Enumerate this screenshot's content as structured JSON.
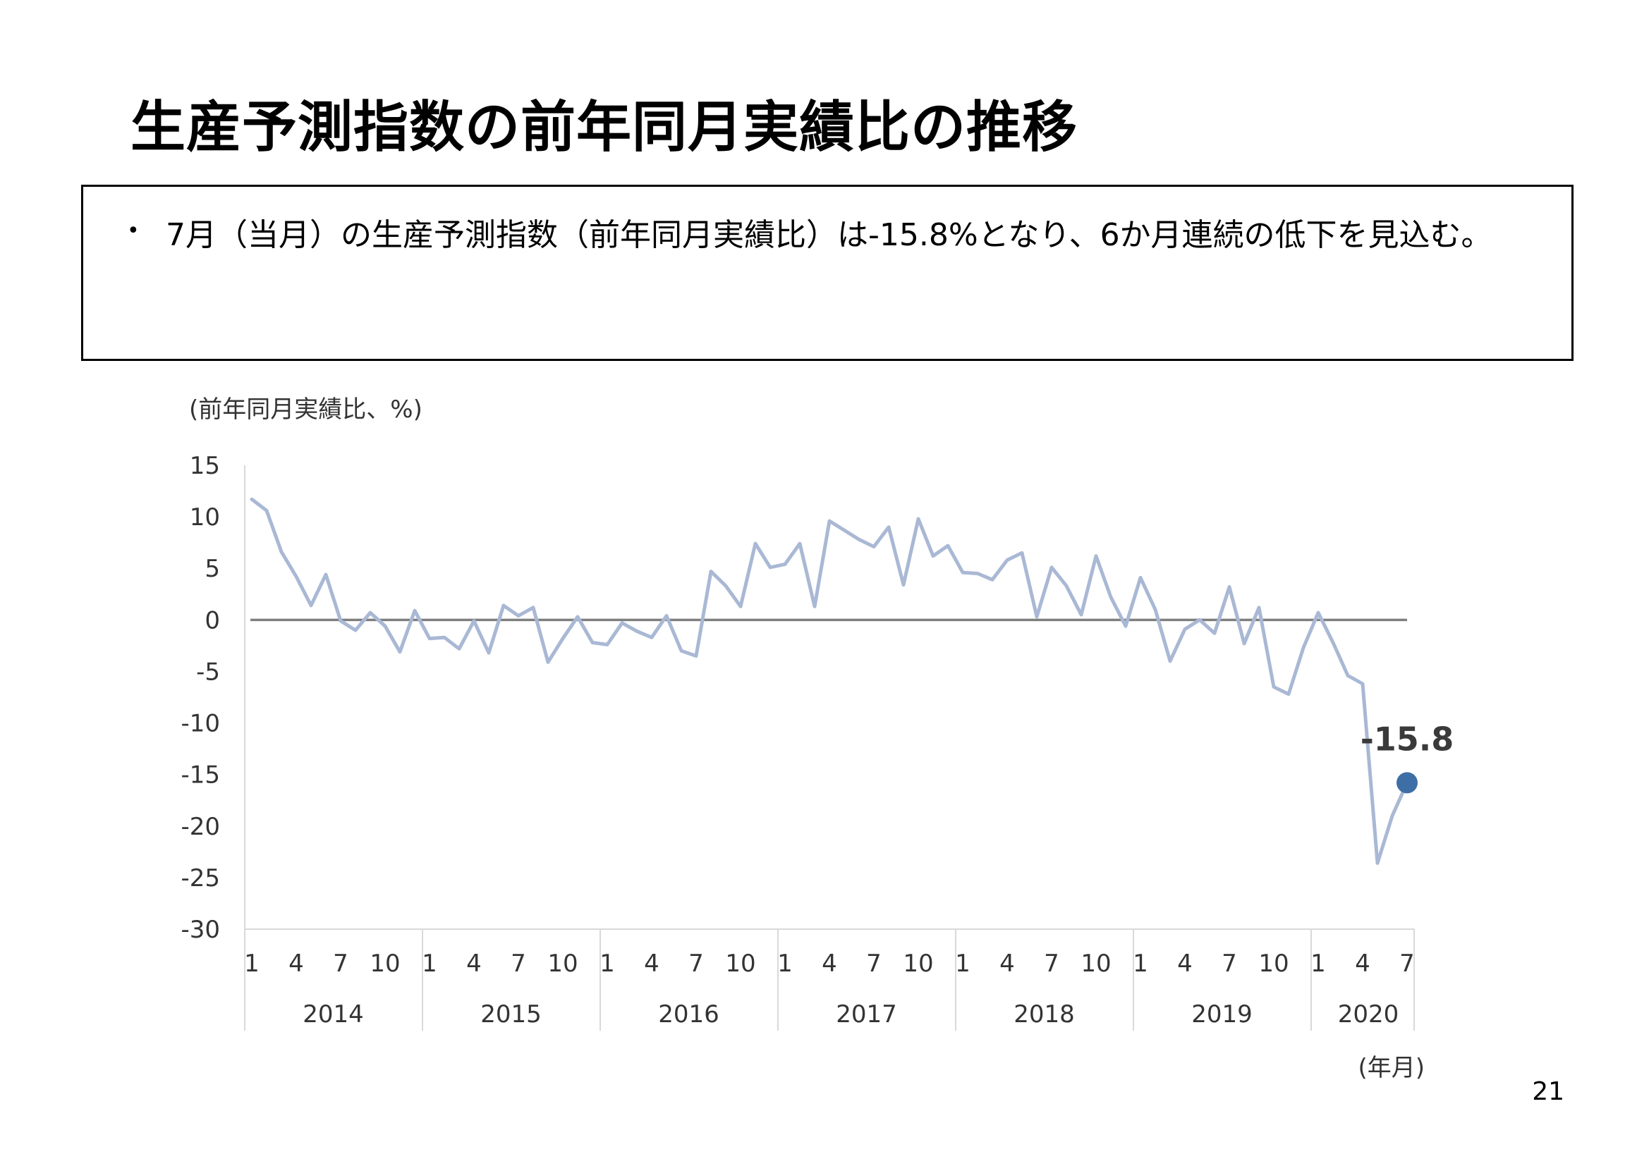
{
  "title": "生産予測指数の前年同月実績比の推移",
  "summary": {
    "bullet": "•",
    "text": "7月（当月）の生産予測指数（前年同月実績比）は-15.8%となり、6か月連続の低下を見込む。"
  },
  "page_number": "21",
  "chart_data": {
    "type": "line",
    "ylabel": "(前年同月実績比、%)",
    "xlabel": "(年月)",
    "ylim": [
      -30,
      15
    ],
    "yticks": [
      "15",
      "10",
      "5",
      "0",
      "-5",
      "-10",
      "-15",
      "-20",
      "-25",
      "-30"
    ],
    "years": [
      "2014",
      "2015",
      "2016",
      "2017",
      "2018",
      "2019",
      "2020"
    ],
    "month_ticks": [
      "1",
      "4",
      "7",
      "10"
    ],
    "months": [
      "2014-01",
      "2014-02",
      "2014-03",
      "2014-04",
      "2014-05",
      "2014-06",
      "2014-07",
      "2014-08",
      "2014-09",
      "2014-10",
      "2014-11",
      "2014-12",
      "2015-01",
      "2015-02",
      "2015-03",
      "2015-04",
      "2015-05",
      "2015-06",
      "2015-07",
      "2015-08",
      "2015-09",
      "2015-10",
      "2015-11",
      "2015-12",
      "2016-01",
      "2016-02",
      "2016-03",
      "2016-04",
      "2016-05",
      "2016-06",
      "2016-07",
      "2016-08",
      "2016-09",
      "2016-10",
      "2016-11",
      "2016-12",
      "2017-01",
      "2017-02",
      "2017-03",
      "2017-04",
      "2017-05",
      "2017-06",
      "2017-07",
      "2017-08",
      "2017-09",
      "2017-10",
      "2017-11",
      "2017-12",
      "2018-01",
      "2018-02",
      "2018-03",
      "2018-04",
      "2018-05",
      "2018-06",
      "2018-07",
      "2018-08",
      "2018-09",
      "2018-10",
      "2018-11",
      "2018-12",
      "2019-01",
      "2019-02",
      "2019-03",
      "2019-04",
      "2019-05",
      "2019-06",
      "2019-07",
      "2019-08",
      "2019-09",
      "2019-10",
      "2019-11",
      "2019-12",
      "2020-01",
      "2020-02",
      "2020-03",
      "2020-04",
      "2020-05",
      "2020-06",
      "2020-07"
    ],
    "values": [
      11.7,
      10.6,
      6.6,
      4.2,
      1.4,
      4.4,
      -0.1,
      -1.0,
      0.7,
      -0.6,
      -3.1,
      0.9,
      -1.8,
      -1.7,
      -2.8,
      -0.1,
      -3.2,
      1.4,
      0.4,
      1.2,
      -4.1,
      -1.8,
      0.3,
      -2.2,
      -2.4,
      -0.3,
      -1.1,
      -1.7,
      0.4,
      -3.0,
      -3.5,
      4.7,
      3.3,
      1.3,
      7.4,
      5.1,
      5.4,
      7.4,
      1.3,
      9.6,
      8.7,
      7.8,
      7.1,
      9.0,
      3.4,
      9.8,
      6.2,
      7.2,
      4.6,
      4.5,
      3.9,
      5.8,
      6.5,
      0.3,
      5.1,
      3.3,
      0.5,
      6.2,
      2.2,
      -0.6,
      4.1,
      1.0,
      -4.0,
      -0.9,
      0.0,
      -1.3,
      3.2,
      -2.3,
      1.2,
      -6.5,
      -7.2,
      -2.7,
      0.7,
      -2.2,
      -5.4,
      -6.2,
      -23.6,
      -19.0,
      -15.8
    ],
    "callout": {
      "label": "-15.8",
      "value": -15.8
    },
    "zero_line": true,
    "series_color": "#a9b8d4",
    "highlight_color": "#3d6fa6",
    "axis_color": "#d9d9d9",
    "zero_line_color": "#7f7f7f"
  }
}
